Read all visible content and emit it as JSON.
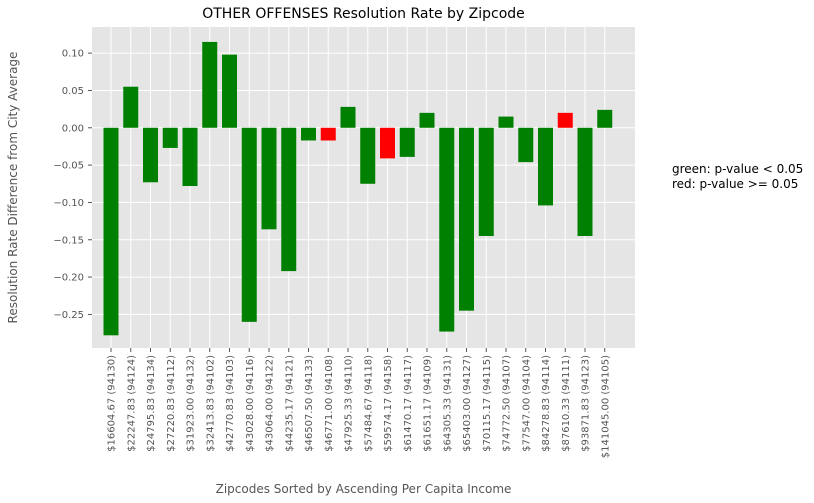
{
  "chart_data": {
    "type": "bar",
    "title": "OTHER OFFENSES Resolution Rate by Zipcode",
    "xlabel": "Zipcodes Sorted by Ascending Per Capita Income",
    "ylabel": "Resolution Rate Difference from City Average",
    "ylim": [
      -0.295,
      0.135
    ],
    "yticks": [
      0.1,
      0.05,
      0.0,
      -0.05,
      -0.1,
      -0.15,
      -0.2,
      -0.25
    ],
    "ytick_labels": [
      "0.10",
      "0.05",
      "0.00",
      "−0.05",
      "−0.10",
      "−0.15",
      "−0.20",
      "−0.25"
    ],
    "grid": true,
    "categories": [
      "$16604.67 (94130)",
      "$22247.83 (94124)",
      "$24795.83 (94134)",
      "$27220.83 (94112)",
      "$31923.00 (94132)",
      "$32413.83 (94102)",
      "$42770.83 (94103)",
      "$43028.00 (94116)",
      "$43064.00 (94122)",
      "$44235.17 (94121)",
      "$46507.50 (94133)",
      "$46771.00 (94108)",
      "$47925.33 (94110)",
      "$57484.67 (94118)",
      "$59574.17 (94158)",
      "$61470.17 (94117)",
      "$61651.17 (94109)",
      "$64305.33 (94131)",
      "$65403.00 (94127)",
      "$70115.17 (94115)",
      "$74772.50 (94107)",
      "$77547.00 (94104)",
      "$84278.83 (94114)",
      "$87610.33 (94111)",
      "$93871.83 (94123)",
      "$141045.00 (94105)"
    ],
    "values": [
      -0.278,
      0.055,
      -0.073,
      -0.027,
      -0.078,
      0.115,
      0.098,
      -0.26,
      -0.136,
      -0.192,
      -0.017,
      -0.017,
      0.028,
      -0.075,
      -0.041,
      -0.039,
      0.02,
      -0.273,
      -0.245,
      -0.145,
      0.015,
      -0.046,
      -0.104,
      0.02,
      -0.145,
      0.024
    ],
    "significant": [
      true,
      true,
      true,
      true,
      true,
      true,
      true,
      true,
      true,
      true,
      true,
      false,
      true,
      true,
      false,
      true,
      true,
      true,
      true,
      true,
      true,
      true,
      true,
      false,
      true,
      true
    ],
    "colors": {
      "significant": "#008000",
      "not_significant": "#ff0000",
      "plot_bg": "#e5e5e5",
      "grid": "#ffffff"
    },
    "legend_placement": "right",
    "annotation": [
      "green: p-value < 0.05",
      "red: p-value >= 0.05"
    ]
  }
}
